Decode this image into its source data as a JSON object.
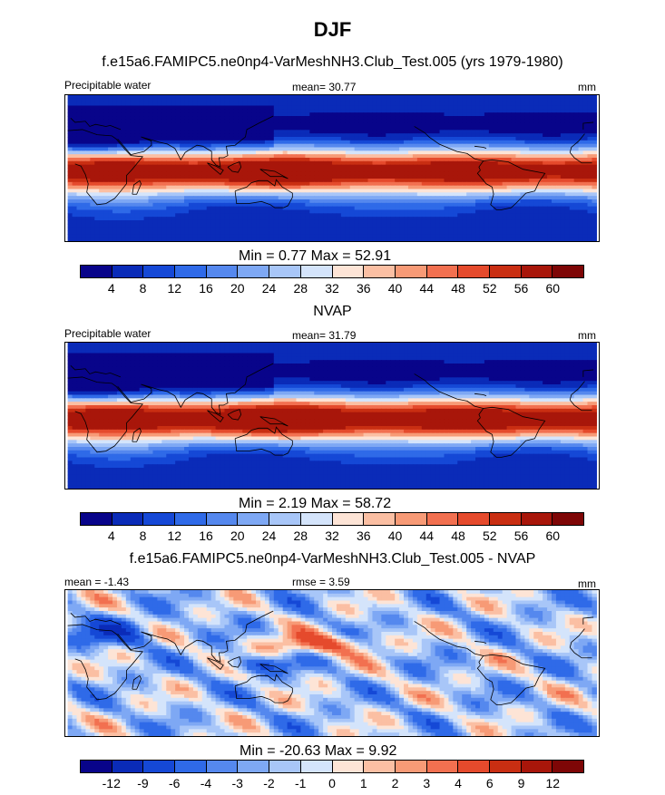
{
  "title": "DJF",
  "units": "mm",
  "palette": {
    "abs": [
      "#08048a",
      "#0a2bb8",
      "#1548d6",
      "#2f6ae8",
      "#5588ee",
      "#7ea8f4",
      "#a8c6f8",
      "#d4e4fb",
      "#fde4d6",
      "#fbbfa3",
      "#f79a76",
      "#f27050",
      "#e54a2c",
      "#c92e12",
      "#a8160a",
      "#7e0606"
    ],
    "diff": [
      "#08048a",
      "#0a2bb8",
      "#1548d6",
      "#2f6ae8",
      "#5588ee",
      "#7ea8f4",
      "#a8c6f8",
      "#d4e4fb",
      "#fde4d6",
      "#fbbfa3",
      "#f79a76",
      "#f27050",
      "#e54a2c",
      "#c92e12",
      "#a8160a",
      "#7e0606"
    ],
    "land_outline": "#000000"
  },
  "chart_data": [
    {
      "type": "heatmap",
      "title": "f.e15a6.FAMIPC5.ne0np4-VarMeshNH3.Club_Test.005 (yrs 1979-1980)",
      "left_label": "Precipitable water",
      "center_label": "mean=  30.77",
      "right_label": "mm",
      "stats_label": "Min =   0.77 Max =  52.91",
      "min": 0.77,
      "max": 52.91,
      "mean": 30.77,
      "colorbar_ticks": [
        "4",
        "8",
        "12",
        "16",
        "20",
        "24",
        "28",
        "32",
        "36",
        "40",
        "44",
        "48",
        "52",
        "56",
        "60"
      ],
      "field": "model"
    },
    {
      "type": "heatmap",
      "title": "NVAP",
      "left_label": "Precipitable water",
      "center_label": "mean=  31.79",
      "right_label": "mm",
      "stats_label": "Min =   2.19 Max =  58.72",
      "min": 2.19,
      "max": 58.72,
      "mean": 31.79,
      "colorbar_ticks": [
        "4",
        "8",
        "12",
        "16",
        "20",
        "24",
        "28",
        "32",
        "36",
        "40",
        "44",
        "48",
        "52",
        "56",
        "60"
      ],
      "field": "obs"
    },
    {
      "type": "heatmap",
      "title": "f.e15a6.FAMIPC5.ne0np4-VarMeshNH3.Club_Test.005 - NVAP",
      "left_label": "mean =  -1.43",
      "center_label": "rmse =   3.59",
      "right_label": "mm",
      "stats_label": "Min = -20.63 Max =   9.92",
      "min": -20.63,
      "max": 9.92,
      "mean": -1.43,
      "rmse": 3.59,
      "colorbar_ticks": [
        "-12",
        "-9",
        "-6",
        "-4",
        "-3",
        "-2",
        "-1",
        "0",
        "1",
        "2",
        "3",
        "4",
        "6",
        "9",
        "12"
      ],
      "field": "diff"
    }
  ]
}
